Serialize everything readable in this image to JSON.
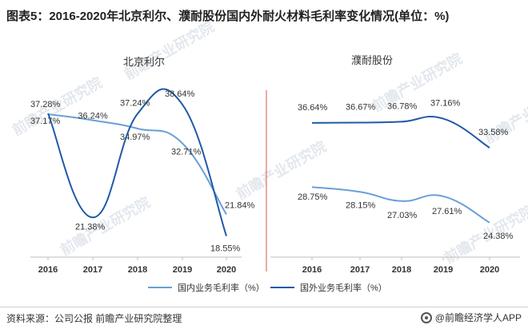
{
  "title": "图表5：2016-2020年北京利尔、濮耐股份国内外耐火材料毛利率变化情况(单位：%)",
  "source": "资料来源：公司公报 前瞻产业研究院整理",
  "brand": "@前瞻经济学人APP",
  "watermark": "前瞻产业研究院",
  "colors": {
    "domestic": "#6a9fd8",
    "foreign": "#1f5aa6",
    "divider": "#d9534f"
  },
  "chart_data": [
    {
      "type": "line",
      "title": "北京利尔",
      "categories": [
        "2016",
        "2017",
        "2018",
        "2019",
        "2020"
      ],
      "series": [
        {
          "name": "国内业务毛利率（%）",
          "values": [
            37.17,
            36.24,
            34.97,
            32.71,
            21.84
          ],
          "labels": [
            "37.17%",
            "36.24%",
            "34.97%",
            "32.71%",
            "21.84%"
          ]
        },
        {
          "name": "国外业务毛利率（%）",
          "values": [
            37.28,
            21.38,
            37.24,
            38.64,
            18.55
          ],
          "labels": [
            "37.28%",
            "21.38%",
            "37.24%",
            "38.64%",
            "18.55%"
          ]
        }
      ],
      "smooth": true,
      "grid": false
    },
    {
      "type": "line",
      "title": "濮耐股份",
      "categories": [
        "2016",
        "2017",
        "2018",
        "2019",
        "2020"
      ],
      "series": [
        {
          "name": "国内业务毛利率（%）",
          "values": [
            28.75,
            28.15,
            27.03,
            27.61,
            24.38
          ],
          "labels": [
            "28.75%",
            "28.15%",
            "27.03%",
            "27.61%",
            "24.38%"
          ]
        },
        {
          "name": "国外业务毛利率（%）",
          "values": [
            36.64,
            36.67,
            36.78,
            37.16,
            33.58
          ],
          "labels": [
            "36.64%",
            "36.67%",
            "36.78%",
            "37.16%",
            "33.58%"
          ]
        }
      ],
      "smooth": true,
      "grid": false
    }
  ],
  "legend": {
    "placement": "bottom",
    "items": [
      "国内业务毛利率（%）",
      "国外业务毛利率（%）"
    ]
  }
}
